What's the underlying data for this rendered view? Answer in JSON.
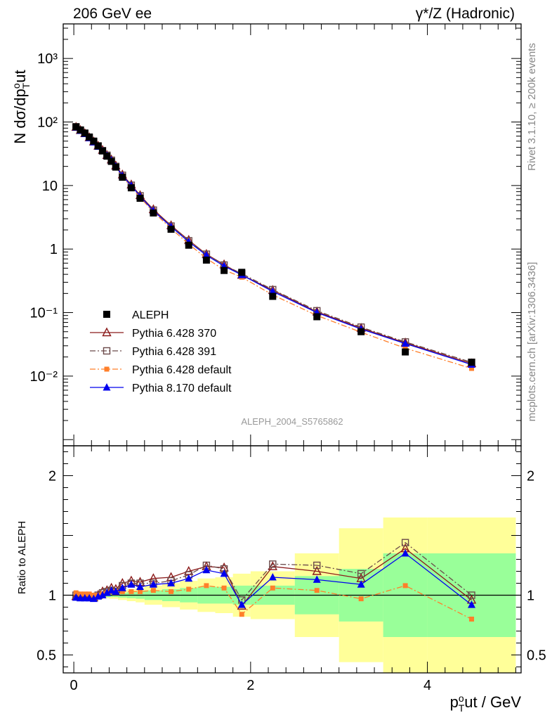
{
  "header": {
    "left": "206 GeV ee",
    "right": "γ*/Z (Hadronic)"
  },
  "side_labels": {
    "rivet": "Rivet 3.1.10, ≥ 200k events",
    "mcplots": "mcplots.cern.ch [arXiv:1306.3436]"
  },
  "watermark": "ALEPH_2004_S5765862",
  "colors": {
    "data": "#000000",
    "p370": "#8b1a1a",
    "p391": "#6b4a4a",
    "p6def": "#ff7f2a",
    "p8def": "#0000ee",
    "band_inner": "#99ff99",
    "band_outer": "#ffff99"
  },
  "chart_data": [
    {
      "type": "scatter",
      "title": "",
      "ylabel": "N dσ/dp_T^out",
      "xlabel": "",
      "yscale": "log",
      "xlim": [
        -0.12,
        5.06
      ],
      "ylim": [
        0.0008,
        3500
      ],
      "y_tick_labels": [
        "10⁻²",
        "10⁻¹",
        "1",
        "10",
        "10²",
        "10³"
      ],
      "x": [
        0.025,
        0.075,
        0.125,
        0.175,
        0.225,
        0.275,
        0.325,
        0.375,
        0.425,
        0.475,
        0.55,
        0.65,
        0.75,
        0.9,
        1.1,
        1.3,
        1.5,
        1.7,
        1.9,
        2.25,
        2.75,
        3.25,
        3.75,
        4.5
      ],
      "series": [
        {
          "name": "ALEPH",
          "key": "data",
          "marker": "square-filled",
          "values": [
            84,
            75,
            67,
            58,
            50,
            42,
            35,
            29,
            24,
            19.5,
            13.5,
            9.2,
            6.3,
            3.7,
            2.05,
            1.15,
            0.67,
            0.46,
            0.43,
            0.18,
            0.086,
            0.05,
            0.024,
            0.0165
          ]
        },
        {
          "name": "Pythia 6.428 370",
          "key": "p370",
          "marker": "triangle-open",
          "line": "solid",
          "values": [
            83,
            74,
            66,
            57,
            49,
            42,
            36,
            30,
            25.5,
            20.5,
            14.8,
            10.3,
            7.0,
            4.2,
            2.35,
            1.38,
            0.83,
            0.57,
            0.39,
            0.225,
            0.103,
            0.057,
            0.0335,
            0.0158
          ]
        },
        {
          "name": "Pythia 6.428 391",
          "key": "p391",
          "marker": "square-open",
          "line": "dashdot",
          "values": [
            84,
            74,
            66,
            57,
            49,
            42,
            35.5,
            30,
            25,
            20,
            14.5,
            10.1,
            6.9,
            4.1,
            2.3,
            1.35,
            0.83,
            0.56,
            0.41,
            0.23,
            0.107,
            0.059,
            0.0345,
            0.0165
          ]
        },
        {
          "name": "Pythia 6.428 default",
          "key": "p6def",
          "marker": "square-small-filled",
          "line": "dashdot",
          "values": [
            86,
            76,
            68,
            59,
            50,
            42,
            35.5,
            29.5,
            25,
            20,
            13.8,
            9.5,
            6.5,
            3.85,
            2.1,
            1.2,
            0.71,
            0.47,
            0.36,
            0.19,
            0.09,
            0.049,
            0.0275,
            0.0132
          ]
        },
        {
          "name": "Pythia 8.170 default",
          "key": "p8def",
          "marker": "triangle-filled",
          "line": "solid",
          "values": [
            82,
            73,
            65,
            56,
            48,
            41,
            35,
            29.5,
            25,
            20,
            14.3,
            10,
            6.8,
            4.0,
            2.25,
            1.3,
            0.8,
            0.54,
            0.39,
            0.215,
            0.1,
            0.055,
            0.0325,
            0.0152
          ]
        }
      ]
    },
    {
      "type": "line",
      "title": "",
      "ylabel": "Ratio to ALEPH",
      "xlabel": "p_T^out / GeV",
      "xlim": [
        -0.12,
        5.06
      ],
      "ylim": [
        0.35,
        2.25
      ],
      "y_ticks": [
        0.5,
        1,
        2
      ],
      "y_tick_labels": [
        "0.5",
        "1",
        "2"
      ],
      "x_ticks": [
        0,
        2,
        4
      ],
      "x_tick_labels": [
        "0",
        "2",
        "4"
      ],
      "x": [
        0.025,
        0.075,
        0.125,
        0.175,
        0.225,
        0.275,
        0.325,
        0.375,
        0.425,
        0.475,
        0.55,
        0.65,
        0.75,
        0.9,
        1.1,
        1.3,
        1.5,
        1.7,
        1.9,
        2.25,
        2.75,
        3.25,
        3.75,
        4.5
      ],
      "bands": {
        "edges": [
          0,
          0.05,
          0.1,
          0.15,
          0.2,
          0.25,
          0.3,
          0.35,
          0.4,
          0.45,
          0.5,
          0.6,
          0.7,
          0.8,
          1.0,
          1.2,
          1.4,
          1.6,
          1.8,
          2.0,
          2.5,
          3.0,
          3.5,
          4.0,
          5.0
        ],
        "inner_lo": [
          0.99,
          0.99,
          0.99,
          0.99,
          0.99,
          0.99,
          0.99,
          0.985,
          0.985,
          0.985,
          0.98,
          0.975,
          0.97,
          0.96,
          0.95,
          0.94,
          0.93,
          0.93,
          0.92,
          0.92,
          0.84,
          0.78,
          0.65,
          0.65
        ],
        "inner_hi": [
          1.01,
          1.01,
          1.01,
          1.01,
          1.01,
          1.01,
          1.01,
          1.015,
          1.015,
          1.015,
          1.02,
          1.025,
          1.03,
          1.04,
          1.05,
          1.06,
          1.07,
          1.07,
          1.08,
          1.08,
          1.16,
          1.22,
          1.35,
          1.35
        ],
        "outer_lo": [
          0.985,
          0.985,
          0.985,
          0.985,
          0.985,
          0.985,
          0.98,
          0.975,
          0.97,
          0.97,
          0.96,
          0.95,
          0.94,
          0.92,
          0.9,
          0.88,
          0.86,
          0.85,
          0.82,
          0.8,
          0.65,
          0.44,
          0.35,
          0.35
        ],
        "outer_hi": [
          1.015,
          1.015,
          1.015,
          1.015,
          1.015,
          1.015,
          1.02,
          1.025,
          1.03,
          1.03,
          1.04,
          1.05,
          1.06,
          1.08,
          1.1,
          1.12,
          1.14,
          1.15,
          1.18,
          1.2,
          1.35,
          1.56,
          1.65,
          1.65
        ]
      },
      "series": [
        {
          "name": "Pythia 6.428 370",
          "key": "p370",
          "marker": "triangle-open",
          "line": "solid",
          "values": [
            0.99,
            0.985,
            0.985,
            0.985,
            0.98,
            1.0,
            1.03,
            1.04,
            1.06,
            1.05,
            1.1,
            1.12,
            1.11,
            1.14,
            1.15,
            1.2,
            1.24,
            1.23,
            0.91,
            1.24,
            1.2,
            1.14,
            1.39,
            0.96
          ]
        },
        {
          "name": "Pythia 6.428 391",
          "key": "p391",
          "marker": "square-open",
          "line": "dashdot",
          "values": [
            1.0,
            0.99,
            0.985,
            0.985,
            0.98,
            1.0,
            1.02,
            1.03,
            1.04,
            1.03,
            1.08,
            1.1,
            1.1,
            1.1,
            1.12,
            1.17,
            1.25,
            1.22,
            0.96,
            1.26,
            1.25,
            1.18,
            1.44,
            1.0
          ]
        },
        {
          "name": "Pythia 6.428 default",
          "key": "p6def",
          "marker": "square-small-filled",
          "line": "dashdot",
          "values": [
            1.02,
            1.01,
            1.01,
            1.01,
            1.0,
            1.0,
            1.01,
            1.02,
            1.03,
            1.03,
            1.03,
            1.03,
            1.03,
            1.04,
            1.03,
            1.05,
            1.08,
            1.06,
            0.84,
            1.06,
            1.04,
            0.97,
            1.08,
            0.8
          ]
        },
        {
          "name": "Pythia 8.170 default",
          "key": "p8def",
          "marker": "triangle-filled",
          "line": "solid",
          "values": [
            0.98,
            0.975,
            0.975,
            0.975,
            0.97,
            0.99,
            1.0,
            1.02,
            1.04,
            1.03,
            1.06,
            1.09,
            1.07,
            1.09,
            1.1,
            1.14,
            1.21,
            1.18,
            0.92,
            1.15,
            1.13,
            1.09,
            1.35,
            0.92
          ]
        }
      ]
    }
  ]
}
